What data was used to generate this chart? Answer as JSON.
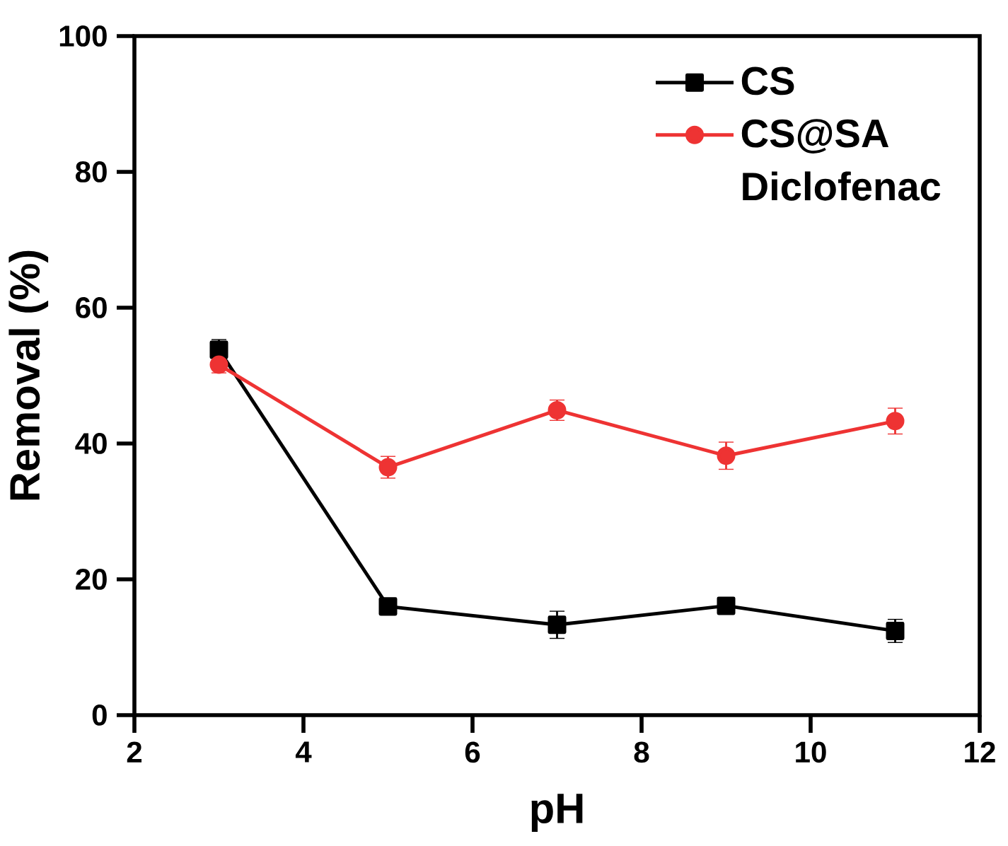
{
  "chart_data": {
    "type": "line",
    "xlabel": "pH",
    "ylabel": "Removal (%)",
    "legend_title": "Diclofenac",
    "x": [
      3,
      5,
      7,
      9,
      11
    ],
    "series": [
      {
        "name": "CS",
        "color": "#000000",
        "marker": "square",
        "values": [
          53.8,
          16.0,
          13.3,
          16.1,
          12.4
        ],
        "errors": [
          1.5,
          1.2,
          2.0,
          1.2,
          1.7
        ]
      },
      {
        "name": "CS@SA",
        "color": "#ee3333",
        "marker": "circle",
        "values": [
          51.6,
          36.5,
          44.9,
          38.2,
          43.3
        ],
        "errors": [
          1.2,
          1.6,
          1.5,
          2.0,
          1.9
        ]
      }
    ],
    "xlim": [
      2,
      12
    ],
    "xticks": [
      2,
      4,
      6,
      8,
      10,
      12
    ],
    "ylim": [
      0,
      100
    ],
    "yticks": [
      0,
      20,
      40,
      60,
      80,
      100
    ],
    "grid": false,
    "legend": "top right"
  }
}
